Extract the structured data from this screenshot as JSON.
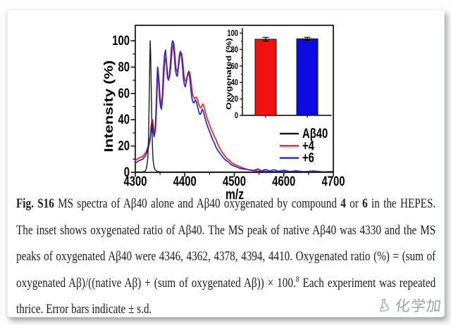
{
  "chart_data": [
    {
      "type": "line",
      "title": "",
      "xlabel": "m/z",
      "ylabel": "Intensity (%)",
      "xlim": [
        4300,
        4700
      ],
      "ylim": [
        0,
        100
      ],
      "xticks": [
        4300,
        4400,
        4500,
        4600,
        4700
      ],
      "xticks_minor": [
        4350,
        4450,
        4550,
        4650
      ],
      "yticks": [
        0,
        20,
        40,
        60,
        80,
        100
      ],
      "yticks_minor": [
        10,
        30,
        50,
        70,
        90
      ],
      "grid": false,
      "legend_position": "bottom-right-inside",
      "series": [
        {
          "name": "Aβ40",
          "color": "#1a1a1a",
          "points": [
            [
              4300,
              0.3
            ],
            [
              4314,
              0.3
            ],
            [
              4318,
              0.6
            ],
            [
              4321,
              1.5
            ],
            [
              4323,
              4
            ],
            [
              4325,
              10
            ],
            [
              4326,
              18
            ],
            [
              4327,
              32
            ],
            [
              4328,
              55
            ],
            [
              4329,
              80
            ],
            [
              4330,
              100
            ],
            [
              4331,
              90
            ],
            [
              4332,
              68
            ],
            [
              4333,
              45
            ],
            [
              4334,
              28
            ],
            [
              4335,
              16
            ],
            [
              4336,
              9
            ],
            [
              4338,
              4
            ],
            [
              4340,
              2
            ],
            [
              4343,
              1
            ],
            [
              4347,
              0.5
            ],
            [
              4355,
              0.3
            ],
            [
              4700,
              0.3
            ]
          ]
        },
        {
          "name": "+4",
          "color": "#e02525",
          "points": [
            [
              4300,
              9
            ],
            [
              4308,
              11
            ],
            [
              4315,
              12
            ],
            [
              4321,
              15
            ],
            [
              4326,
              20
            ],
            [
              4330,
              27
            ],
            [
              4333,
              38
            ],
            [
              4335,
              40
            ],
            [
              4337,
              34
            ],
            [
              4339,
              29
            ],
            [
              4341,
              33
            ],
            [
              4343,
              50
            ],
            [
              4345,
              72
            ],
            [
              4346,
              79
            ],
            [
              4348,
              70
            ],
            [
              4350,
              58
            ],
            [
              4352,
              52
            ],
            [
              4354,
              51
            ],
            [
              4356,
              60
            ],
            [
              4358,
              76
            ],
            [
              4360,
              85
            ],
            [
              4362,
              88
            ],
            [
              4364,
              80
            ],
            [
              4366,
              73
            ],
            [
              4368,
              72
            ],
            [
              4370,
              74
            ],
            [
              4372,
              82
            ],
            [
              4374,
              91
            ],
            [
              4376,
              96
            ],
            [
              4378,
              98
            ],
            [
              4380,
              90
            ],
            [
              4382,
              80
            ],
            [
              4384,
              77
            ],
            [
              4386,
              76
            ],
            [
              4388,
              82
            ],
            [
              4390,
              88
            ],
            [
              4392,
              91
            ],
            [
              4394,
              90
            ],
            [
              4396,
              84
            ],
            [
              4398,
              75
            ],
            [
              4400,
              70
            ],
            [
              4402,
              69
            ],
            [
              4404,
              72
            ],
            [
              4406,
              75
            ],
            [
              4408,
              77
            ],
            [
              4410,
              76
            ],
            [
              4412,
              71
            ],
            [
              4414,
              64
            ],
            [
              4416,
              59
            ],
            [
              4418,
              57
            ],
            [
              4420,
              56
            ],
            [
              4422,
              57
            ],
            [
              4424,
              57
            ],
            [
              4426,
              55
            ],
            [
              4428,
              52
            ],
            [
              4430,
              50
            ],
            [
              4432,
              49
            ],
            [
              4434,
              50
            ],
            [
              4436,
              52
            ],
            [
              4438,
              51
            ],
            [
              4440,
              48
            ],
            [
              4442,
              45
            ],
            [
              4445,
              41
            ],
            [
              4448,
              38
            ],
            [
              4451,
              35
            ],
            [
              4454,
              32
            ],
            [
              4457,
              30
            ],
            [
              4460,
              27
            ],
            [
              4463,
              25
            ],
            [
              4466,
              22
            ],
            [
              4470,
              19
            ],
            [
              4474,
              16
            ],
            [
              4478,
              14
            ],
            [
              4482,
              12
            ],
            [
              4486,
              10
            ],
            [
              4491,
              9
            ],
            [
              4496,
              7
            ],
            [
              4501,
              6
            ],
            [
              4507,
              5
            ],
            [
              4513,
              4
            ],
            [
              4520,
              3
            ],
            [
              4528,
              2
            ],
            [
              4537,
              1.4
            ],
            [
              4548,
              1
            ],
            [
              4560,
              0.8
            ],
            [
              4575,
              0.6
            ],
            [
              4595,
              0.5
            ],
            [
              4620,
              0.4
            ],
            [
              4650,
              0.3
            ],
            [
              4700,
              0.3
            ]
          ]
        },
        {
          "name": "+6",
          "color": "#2727c4",
          "points": [
            [
              4300,
              7
            ],
            [
              4308,
              9
            ],
            [
              4315,
              10
            ],
            [
              4321,
              13
            ],
            [
              4326,
              18
            ],
            [
              4330,
              25
            ],
            [
              4332,
              35
            ],
            [
              4334,
              37
            ],
            [
              4336,
              31
            ],
            [
              4338,
              27
            ],
            [
              4340,
              31
            ],
            [
              4342,
              48
            ],
            [
              4344,
              72
            ],
            [
              4345,
              80
            ],
            [
              4347,
              71
            ],
            [
              4349,
              56
            ],
            [
              4351,
              50
            ],
            [
              4353,
              48
            ],
            [
              4355,
              60
            ],
            [
              4357,
              78
            ],
            [
              4359,
              89
            ],
            [
              4361,
              93
            ],
            [
              4363,
              82
            ],
            [
              4365,
              72
            ],
            [
              4367,
              70
            ],
            [
              4369,
              73
            ],
            [
              4371,
              84
            ],
            [
              4373,
              95
            ],
            [
              4375,
              100
            ],
            [
              4377,
              99
            ],
            [
              4379,
              88
            ],
            [
              4381,
              78
            ],
            [
              4383,
              74
            ],
            [
              4385,
              73
            ],
            [
              4387,
              81
            ],
            [
              4389,
              89
            ],
            [
              4391,
              92
            ],
            [
              4393,
              90
            ],
            [
              4395,
              82
            ],
            [
              4397,
              72
            ],
            [
              4399,
              67
            ],
            [
              4401,
              65
            ],
            [
              4403,
              69
            ],
            [
              4405,
              73
            ],
            [
              4407,
              76
            ],
            [
              4409,
              74
            ],
            [
              4411,
              68
            ],
            [
              4413,
              60
            ],
            [
              4415,
              55
            ],
            [
              4417,
              53
            ],
            [
              4419,
              53
            ],
            [
              4421,
              55
            ],
            [
              4423,
              54
            ],
            [
              4425,
              51
            ],
            [
              4427,
              48
            ],
            [
              4429,
              45
            ],
            [
              4431,
              44
            ],
            [
              4433,
              45
            ],
            [
              4435,
              48
            ],
            [
              4437,
              47
            ],
            [
              4439,
              44
            ],
            [
              4441,
              41
            ],
            [
              4444,
              37
            ],
            [
              4447,
              34
            ],
            [
              4450,
              31
            ],
            [
              4453,
              28
            ],
            [
              4456,
              25
            ],
            [
              4459,
              23
            ],
            [
              4462,
              20
            ],
            [
              4466,
              17
            ],
            [
              4470,
              15
            ],
            [
              4474,
              13
            ],
            [
              4478,
              11
            ],
            [
              4483,
              9
            ],
            [
              4488,
              8
            ],
            [
              4493,
              6
            ],
            [
              4499,
              5
            ],
            [
              4505,
              4
            ],
            [
              4512,
              3
            ],
            [
              4520,
              2.5
            ],
            [
              4530,
              2
            ],
            [
              4540,
              1.5
            ],
            [
              4548,
              2.6
            ],
            [
              4555,
              1
            ],
            [
              4563,
              2.2
            ],
            [
              4572,
              1
            ],
            [
              4580,
              2
            ],
            [
              4590,
              0.8
            ],
            [
              4600,
              1.6
            ],
            [
              4612,
              0.6
            ],
            [
              4625,
              1.2
            ],
            [
              4640,
              0.5
            ],
            [
              4660,
              1
            ],
            [
              4680,
              0.4
            ],
            [
              4700,
              0.6
            ]
          ]
        }
      ]
    },
    {
      "type": "bar",
      "ylabel": "Oxygenated (%)",
      "ylim": [
        0,
        100
      ],
      "yticks": [
        0,
        20,
        40,
        60,
        80,
        100
      ],
      "yticks_minor": [
        10,
        30,
        50,
        70,
        90
      ],
      "categories": [
        "+4",
        "+6"
      ],
      "values": [
        92.5,
        93
      ],
      "errors": [
        2.2,
        1.8
      ],
      "colors": [
        "#ee1212",
        "#0b0bdd"
      ]
    }
  ],
  "legend": {
    "entries": [
      {
        "label": "Aβ40",
        "color": "#1a1a1a"
      },
      {
        "label": "+4",
        "color": "#e02525"
      },
      {
        "label": "+6",
        "color": "#2727c4"
      }
    ]
  },
  "caption": {
    "segments": [
      {
        "text": "Fig. S16",
        "bold": true
      },
      {
        "text": " MS spectra of Aβ40 alone and Aβ40 oxygenated by compound ",
        "bold": false
      },
      {
        "text": "4",
        "bold": true
      },
      {
        "text": " or ",
        "bold": false
      },
      {
        "text": "6",
        "bold": true
      },
      {
        "text": " in the HEPES. The inset shows oxygenated ratio of Aβ40. The MS peak of native Aβ40 was 4330 and the MS peaks of oxygenated Aβ40 were 4346, 4362, 4378, 4394, 4410. Oxygenated ratio (%) = (sum of oxygenated Aβ)/((native Aβ) + (sum of oxygenated Aβ)) × 100.",
        "bold": false
      },
      {
        "text": "8",
        "bold": false,
        "sup": true
      },
      {
        "text": " Each experiment was repeated thrice. Error bars indicate ± s.d.",
        "bold": false
      }
    ]
  },
  "watermark": {
    "text": "化学加"
  }
}
